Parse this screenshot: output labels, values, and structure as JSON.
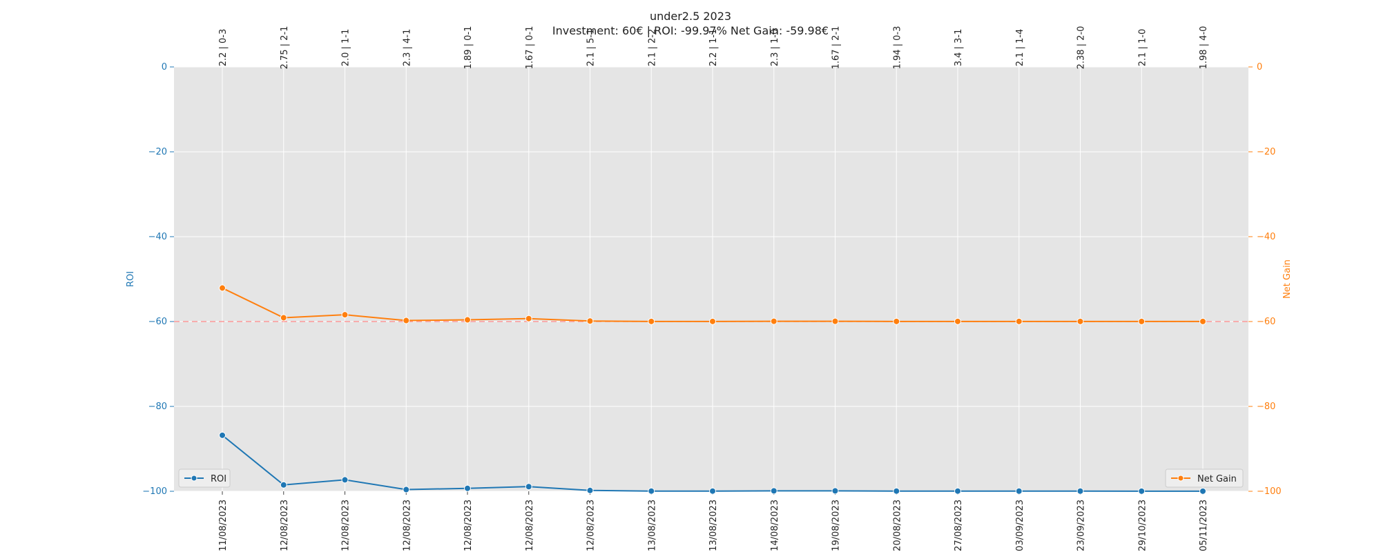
{
  "chart_data": {
    "type": "line",
    "title": "under2.5 2023",
    "subtitle": "Investment: 60€ | ROI: -99.97% Net Gain: -59.98€",
    "x": [
      "11/08/2023",
      "12/08/2023",
      "12/08/2023",
      "12/08/2023",
      "12/08/2023",
      "12/08/2023",
      "12/08/2023",
      "13/08/2023",
      "13/08/2023",
      "14/08/2023",
      "19/08/2023",
      "20/08/2023",
      "27/08/2023",
      "03/09/2023",
      "23/09/2023",
      "29/10/2023",
      "05/11/2023"
    ],
    "top_labels": [
      "2.2 | 0-3",
      "2.75 | 2-1",
      "2.0 | 1-1",
      "2.3 | 4-1",
      "1.89 | 0-1",
      "1.67 | 0-1",
      "2.1 | 5-1",
      "2.1 | 2-2",
      "2.2 | 1-1",
      "2.3 | 1-0",
      "1.67 | 2-1",
      "1.94 | 0-3",
      "3.4 | 3-1",
      "2.1 | 1-4",
      "2.38 | 2-0",
      "2.1 | 1-0",
      "1.98 | 4-0"
    ],
    "series": [
      {
        "name": "ROI",
        "axis": "left",
        "color": "#1f77b4",
        "values": [
          -86.8,
          -98.5,
          -97.3,
          -99.6,
          -99.3,
          -98.9,
          -99.8,
          -99.95,
          -99.95,
          -99.9,
          -99.9,
          -99.95,
          -99.95,
          -99.96,
          -99.96,
          -99.97,
          -99.97
        ]
      },
      {
        "name": "Net Gain",
        "axis": "right",
        "color": "#ff7f0e",
        "values": [
          -52.1,
          -59.1,
          -58.4,
          -59.76,
          -59.6,
          -59.3,
          -59.88,
          -59.97,
          -59.97,
          -59.94,
          -59.94,
          -59.97,
          -59.97,
          -59.976,
          -59.976,
          -59.98,
          -59.98
        ]
      }
    ],
    "ylabel_left": "ROI",
    "ylabel_right": "Net Gain",
    "ylim_left": [
      -100,
      0
    ],
    "ylim_right": [
      -100,
      0
    ],
    "yticks": [
      0,
      -20,
      -40,
      -60,
      -80,
      -100
    ],
    "reference_line": {
      "value": -60,
      "color": "#ff9999",
      "style": "dashed"
    },
    "grid": true,
    "legend": [
      {
        "name": "ROI",
        "position": "bottom-left"
      },
      {
        "name": "Net Gain",
        "position": "bottom-right"
      }
    ],
    "colors": {
      "background": "#e5e5e5",
      "grid": "#ffffff",
      "roi": "#1f77b4",
      "net_gain": "#ff7f0e"
    }
  }
}
